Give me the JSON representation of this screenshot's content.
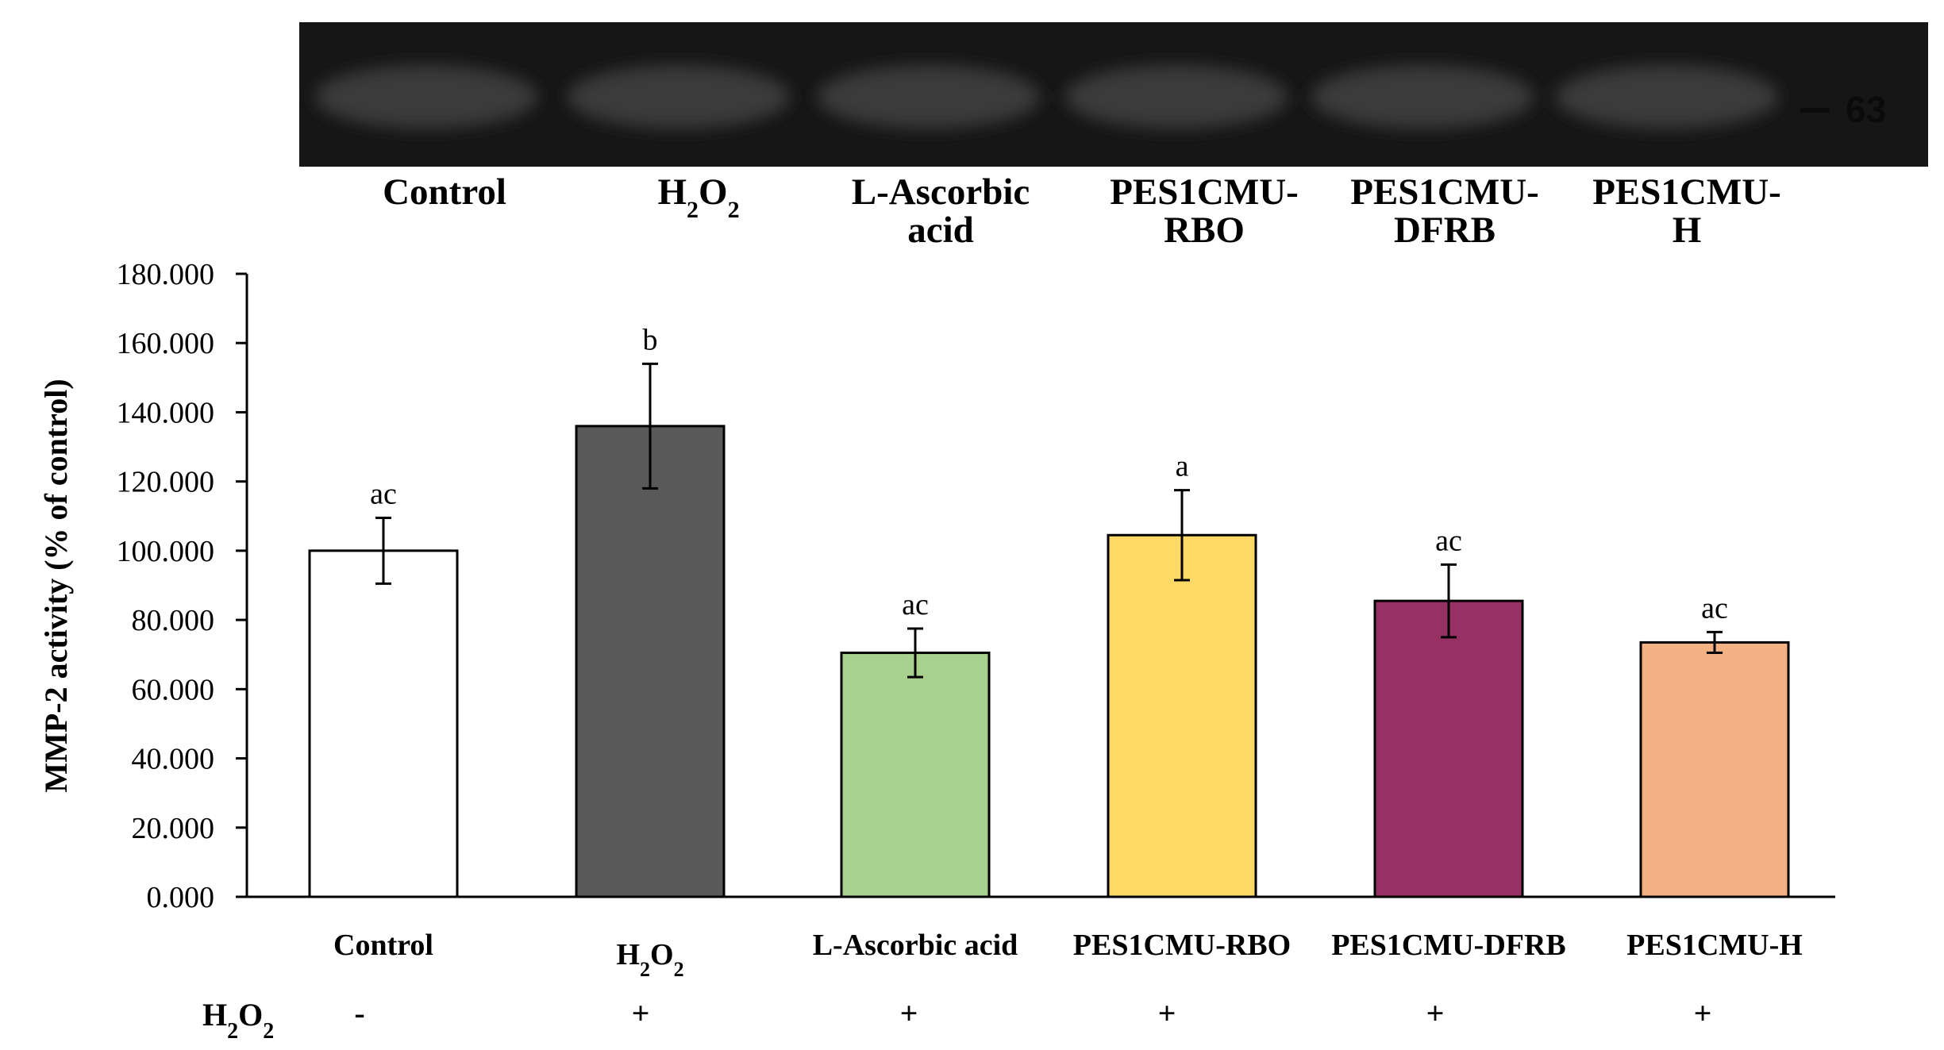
{
  "gel": {
    "lane_labels": [
      {
        "line1": "Control",
        "line2": ""
      },
      {
        "line1": "H",
        "sub1": "2",
        "mid": "O",
        "sub2": "2",
        "line2": ""
      },
      {
        "line1": "L-Ascorbic",
        "line2": "acid"
      },
      {
        "line1": "PES1CMU-",
        "line2": "RBO"
      },
      {
        "line1": "PES1CMU-",
        "line2": "DFRB"
      },
      {
        "line1": "PES1CMU-",
        "line2": "H"
      }
    ],
    "marker_label": "63",
    "background_color": "#161616",
    "band_color": "#3a3a3a"
  },
  "chart_data": {
    "type": "bar",
    "categories": [
      "Control",
      "H2O2",
      "L-Ascorbic acid",
      "PES1CMU-RBO",
      "PES1CMU-DFRB",
      "PES1CMU-H"
    ],
    "category_display": [
      {
        "text": "Control"
      },
      {
        "text": "H",
        "sub1": "2",
        "mid": "O",
        "sub2": "2"
      },
      {
        "text": "L-Ascorbic acid"
      },
      {
        "text": "PES1CMU-RBO"
      },
      {
        "text": "PES1CMU-DFRB"
      },
      {
        "text": "PES1CMU-H"
      }
    ],
    "values": [
      100,
      136,
      70.5,
      104.5,
      85.5,
      73.5
    ],
    "errors": [
      9.5,
      18,
      7,
      13,
      10.5,
      3
    ],
    "significance": [
      "ac",
      "b",
      "ac",
      "a",
      "ac",
      "ac"
    ],
    "colors": [
      "#ffffff",
      "#595959",
      "#a9d18e",
      "#ffd966",
      "#973163",
      "#f4b183"
    ],
    "ylabel": "MMP-2 activity (% of control)",
    "ylim": [
      0,
      180
    ],
    "yticks": [
      "0.000",
      "20.000",
      "40.000",
      "60.000",
      "80.000",
      "100.000",
      "120.000",
      "140.000",
      "160.000",
      "180.000"
    ],
    "grid": false,
    "treatment_row": {
      "label": {
        "text": "H",
        "sub1": "2",
        "mid": "O",
        "sub2": "2"
      },
      "signs": [
        "-",
        "+",
        "+",
        "+",
        "+",
        "+"
      ]
    }
  }
}
